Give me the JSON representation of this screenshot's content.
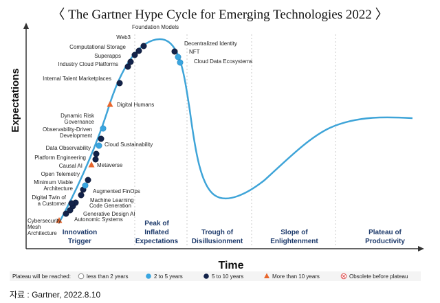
{
  "page": {
    "title": "〈 The Gartner Hype Cycle for Emerging Technologies 2022 〉",
    "source": "자료 : Gartner, 2022.8.10"
  },
  "chart_data": {
    "type": "hype-cycle",
    "title": "The Gartner Hype Cycle for Emerging Technologies 2022",
    "xlabel": "Time",
    "ylabel": "Expectations",
    "phases": [
      "Innovation Trigger",
      "Peak of Inflated Expectations",
      "Trough of Disillusionment",
      "Slope of Enlightenment",
      "Plateau of Productivity"
    ],
    "legend": {
      "heading": "Plateau will be reached:",
      "items": [
        {
          "key": "lt2",
          "label": "less than 2 years",
          "color": "#ffffff",
          "marker": "circle-open"
        },
        {
          "key": "2to5",
          "label": "2 to 5 years",
          "color": "#3aa6e0",
          "marker": "circle"
        },
        {
          "key": "5to10",
          "label": "5 to 10 years",
          "color": "#13234a",
          "marker": "circle"
        },
        {
          "key": "gt10",
          "label": "More than 10 years",
          "color": "#e8662c",
          "marker": "triangle"
        },
        {
          "key": "obsolete",
          "label": "Obsolete before plateau",
          "color": "#e05050",
          "marker": "circle-x"
        }
      ]
    },
    "technologies": [
      {
        "name": "Cybersecurity Mesh Architecture",
        "category": "gt10"
      },
      {
        "name": "Autonomic Systems",
        "category": "5to10"
      },
      {
        "name": "Generative Design AI",
        "category": "5to10"
      },
      {
        "name": "Code Generation",
        "category": "5to10"
      },
      {
        "name": "Machine Learning",
        "category": "5to10"
      },
      {
        "name": "Digital Twin of a Customer",
        "category": "5to10"
      },
      {
        "name": "Augmented FinOps",
        "category": "5to10"
      },
      {
        "name": "Minimum Viable Architecture",
        "category": "5to10"
      },
      {
        "name": "Open Telemetry",
        "category": "2to5"
      },
      {
        "name": "Causal AI",
        "category": "5to10"
      },
      {
        "name": "Metaverse",
        "category": "gt10"
      },
      {
        "name": "Platform Engineering",
        "category": "5to10"
      },
      {
        "name": "Data Observability",
        "category": "5to10"
      },
      {
        "name": "Cloud Sustainability",
        "category": "2to5"
      },
      {
        "name": "Observability-Driven Development",
        "category": "5to10"
      },
      {
        "name": "Dynamic Risk Governance",
        "category": "2to5"
      },
      {
        "name": "Digital Humans",
        "category": "gt10"
      },
      {
        "name": "Internal Talent Marketplaces",
        "category": "5to10"
      },
      {
        "name": "Industry Cloud Platforms",
        "category": "5to10"
      },
      {
        "name": "Superapps",
        "category": "5to10"
      },
      {
        "name": "Computational Storage",
        "category": "5to10"
      },
      {
        "name": "Web3",
        "category": "5to10"
      },
      {
        "name": "Foundation Models",
        "category": "5to10"
      },
      {
        "name": "Decentralized Identity",
        "category": "5to10"
      },
      {
        "name": "NFT",
        "category": "2to5"
      },
      {
        "name": "Cloud Data Ecosystems",
        "category": "2to5"
      }
    ]
  }
}
